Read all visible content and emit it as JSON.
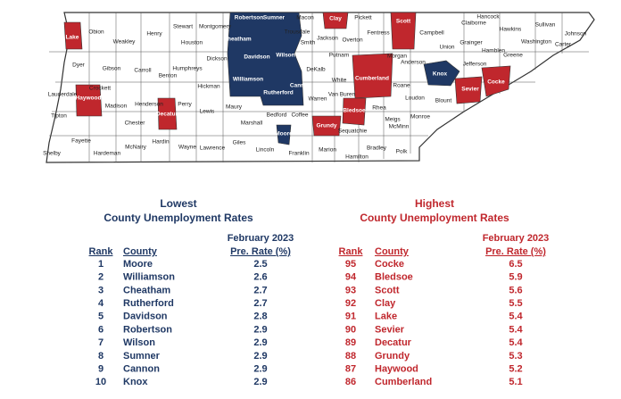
{
  "map": {
    "labels": [
      "Lake",
      "Obion",
      "Weakley",
      "Henry",
      "Stewart",
      "Montgomery",
      "Robertson",
      "Sumner",
      "Macon",
      "Clay",
      "Pickett",
      "Scott",
      "Claiborne",
      "Hancock",
      "Sullivan",
      "Johnson",
      "Hawkins",
      "Trousdale",
      "Houston",
      "Cheatham",
      "Wilson",
      "Smith",
      "Jackson",
      "Overton",
      "Fentress",
      "Campbell",
      "Union",
      "Grainger",
      "Washington",
      "Carter",
      "Greene",
      "Hamblen",
      "Jefferson",
      "Dyer",
      "Gibson",
      "Carroll",
      "Humphreys",
      "Dickson",
      "Davidson",
      "DeKalb",
      "Putnam",
      "Morgan",
      "Anderson",
      "Knox",
      "Cumberland",
      "Crockett",
      "Lauderdale",
      "Benton",
      "Williamson",
      "Cannon",
      "White",
      "Roane",
      "Cocke",
      "Sevier",
      "Blount",
      "Loudon",
      "Haywood",
      "Madison",
      "Henderson",
      "Hickman",
      "Perry",
      "Decatur",
      "Lewis",
      "Maury",
      "Rutherford",
      "Warren",
      "Van Buren",
      "Bledsoe",
      "Rhea",
      "Meigs",
      "McMinn",
      "Monroe",
      "Tipton",
      "Chester",
      "Marshall",
      "Bedford",
      "Coffee",
      "Grundy",
      "Sequatchie",
      "Moore",
      "Fayette",
      "Hardeman",
      "McNairy",
      "Hardin",
      "Wayne",
      "Lawrence",
      "Giles",
      "Lincoln",
      "Franklin",
      "Marion",
      "Hamilton",
      "Bradley",
      "Polk",
      "Shelby"
    ]
  },
  "tables": [
    {
      "title": "Lowest",
      "subtitle": "County Unemployment Rates",
      "period": "February 2023",
      "headers": [
        "Rank",
        "County",
        "Pre. Rate (%)"
      ],
      "rows": [
        [
          1,
          "Moore",
          2.5
        ],
        [
          2,
          "Williamson",
          2.6
        ],
        [
          3,
          "Cheatham",
          2.7
        ],
        [
          4,
          "Rutherford",
          2.7
        ],
        [
          5,
          "Davidson",
          2.8
        ],
        [
          6,
          "Robertson",
          2.9
        ],
        [
          7,
          "Wilson",
          2.9
        ],
        [
          8,
          "Sumner",
          2.9
        ],
        [
          9,
          "Cannon",
          2.9
        ],
        [
          10,
          "Knox",
          2.9
        ]
      ]
    },
    {
      "title": "Highest",
      "subtitle": "County Unemployment Rates",
      "period": "February 2023",
      "headers": [
        "Rank",
        "County",
        "Pre. Rate (%)"
      ],
      "rows": [
        [
          95,
          "Cocke",
          6.5
        ],
        [
          94,
          "Bledsoe",
          5.9
        ],
        [
          93,
          "Scott",
          5.6
        ],
        [
          92,
          "Clay",
          5.5
        ],
        [
          91,
          "Lake",
          5.4
        ],
        [
          90,
          "Sevier",
          5.4
        ],
        [
          89,
          "Decatur",
          5.4
        ],
        [
          88,
          "Grundy",
          5.3
        ],
        [
          87,
          "Haywood",
          5.2
        ],
        [
          86,
          "Cumberland",
          5.1
        ]
      ]
    }
  ]
}
